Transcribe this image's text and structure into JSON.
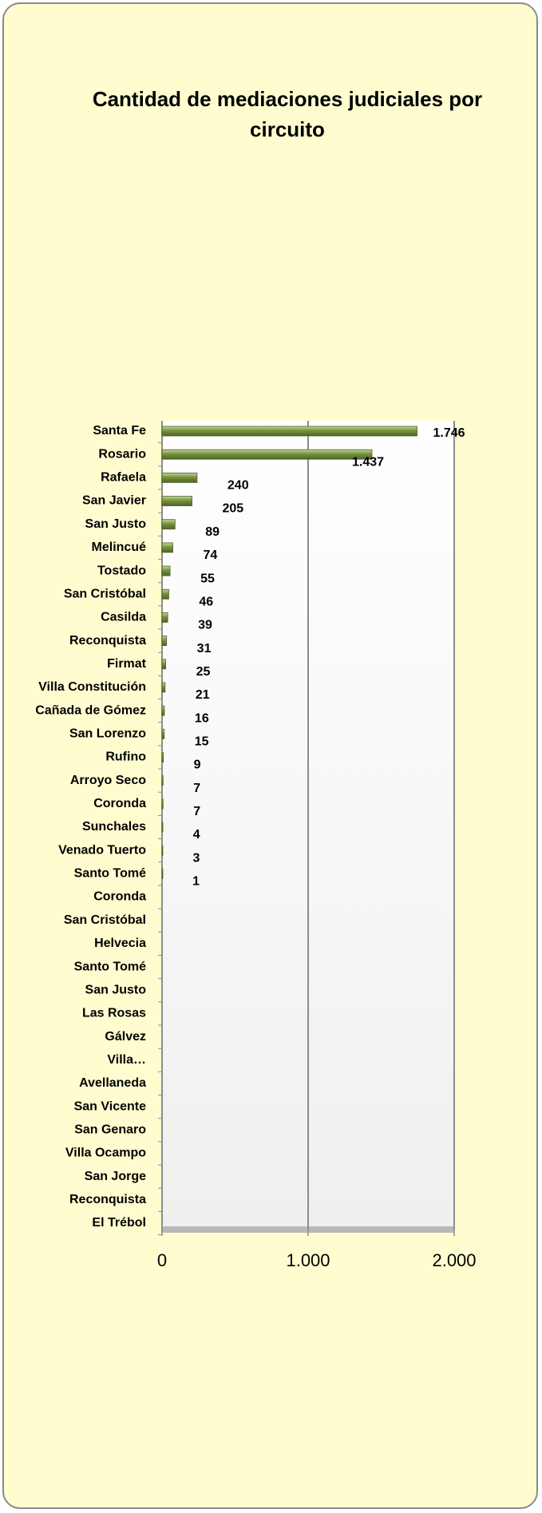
{
  "chart_data": {
    "type": "bar",
    "orientation": "horizontal",
    "title": "Cantidad de mediaciones judiciales por circuito",
    "categories": [
      "Santa Fe",
      "Rosario",
      "Rafaela",
      "San Javier",
      "San Justo",
      "Melincué",
      "Tostado",
      "San Cristóbal",
      "Casilda",
      "Reconquista",
      "Firmat",
      "Villa Constitución",
      "Cañada de Gómez",
      "San Lorenzo",
      "Rufino",
      "Arroyo Seco",
      "Coronda",
      "Sunchales",
      "Venado Tuerto",
      "Santo Tomé",
      "Coronda",
      "San Cristóbal",
      "Helvecia",
      "Santo Tomé",
      "San Justo",
      "Las Rosas",
      "Gálvez",
      "Villa…",
      "Avellaneda",
      "San Vicente",
      "San Genaro",
      "Villa Ocampo",
      "San Jorge",
      "Reconquista",
      "El Trébol"
    ],
    "values": [
      1746,
      1437,
      240,
      205,
      89,
      74,
      55,
      46,
      39,
      31,
      25,
      21,
      16,
      15,
      9,
      7,
      7,
      4,
      3,
      1,
      null,
      null,
      null,
      null,
      null,
      null,
      null,
      null,
      null,
      null,
      null,
      null,
      null,
      null,
      null
    ],
    "value_labels": [
      "1.746",
      "1.437",
      "240",
      "205",
      "89",
      "74",
      "55",
      "46",
      "39",
      "31",
      "25",
      "21",
      "16",
      "15",
      "9",
      "7",
      "7",
      "4",
      "3",
      "1",
      null,
      null,
      null,
      null,
      null,
      null,
      null,
      null,
      null,
      null,
      null,
      null,
      null,
      null,
      null
    ],
    "color": "#77933c",
    "xlim": [
      0,
      2000
    ],
    "xticks": [
      0,
      {
        "value": 1000,
        "label": "1.000"
      },
      {
        "value": 2000,
        "label": "2.000"
      }
    ],
    "grid": true
  }
}
